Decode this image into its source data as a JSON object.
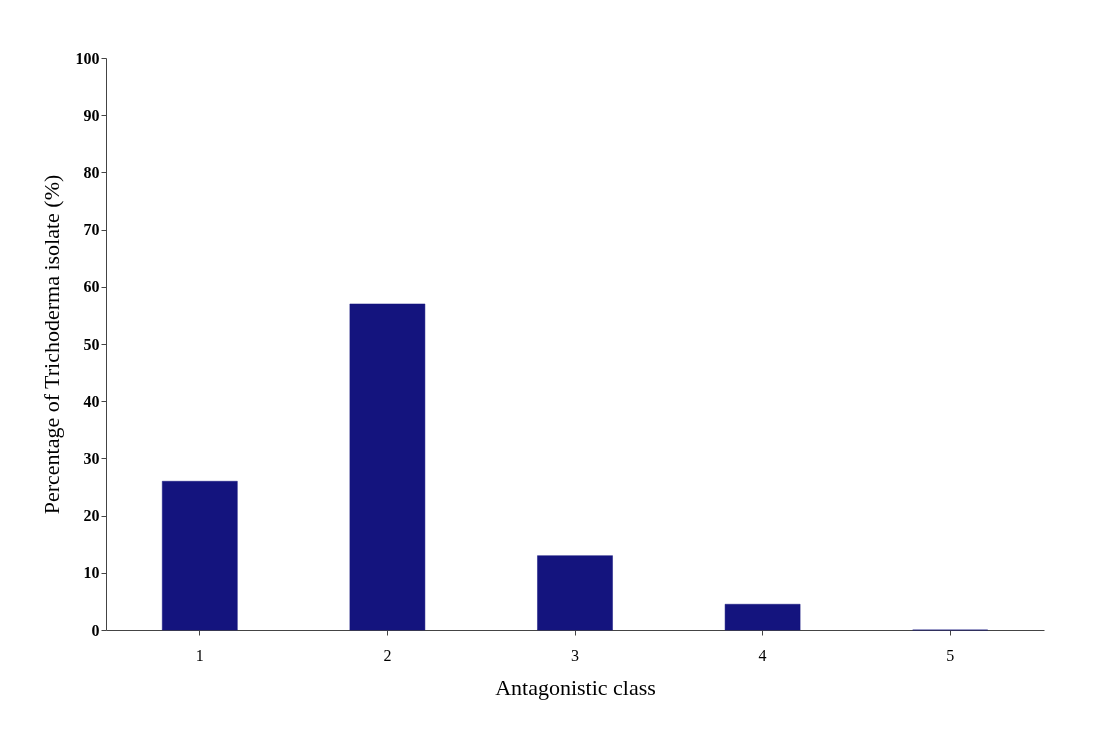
{
  "chart_data": {
    "type": "bar",
    "xlabel": "Antagonistic class",
    "ylabel": "Percentage of Trichoderma isolate (%)",
    "categories": [
      "1",
      "2",
      "3",
      "4",
      "5"
    ],
    "values": [
      26,
      57,
      13,
      4.5,
      0
    ],
    "color": "#14147e",
    "ylim": [
      0,
      100
    ],
    "yticks": [
      0,
      10,
      20,
      30,
      40,
      50,
      60,
      70,
      80,
      90,
      100
    ],
    "grid": false
  }
}
